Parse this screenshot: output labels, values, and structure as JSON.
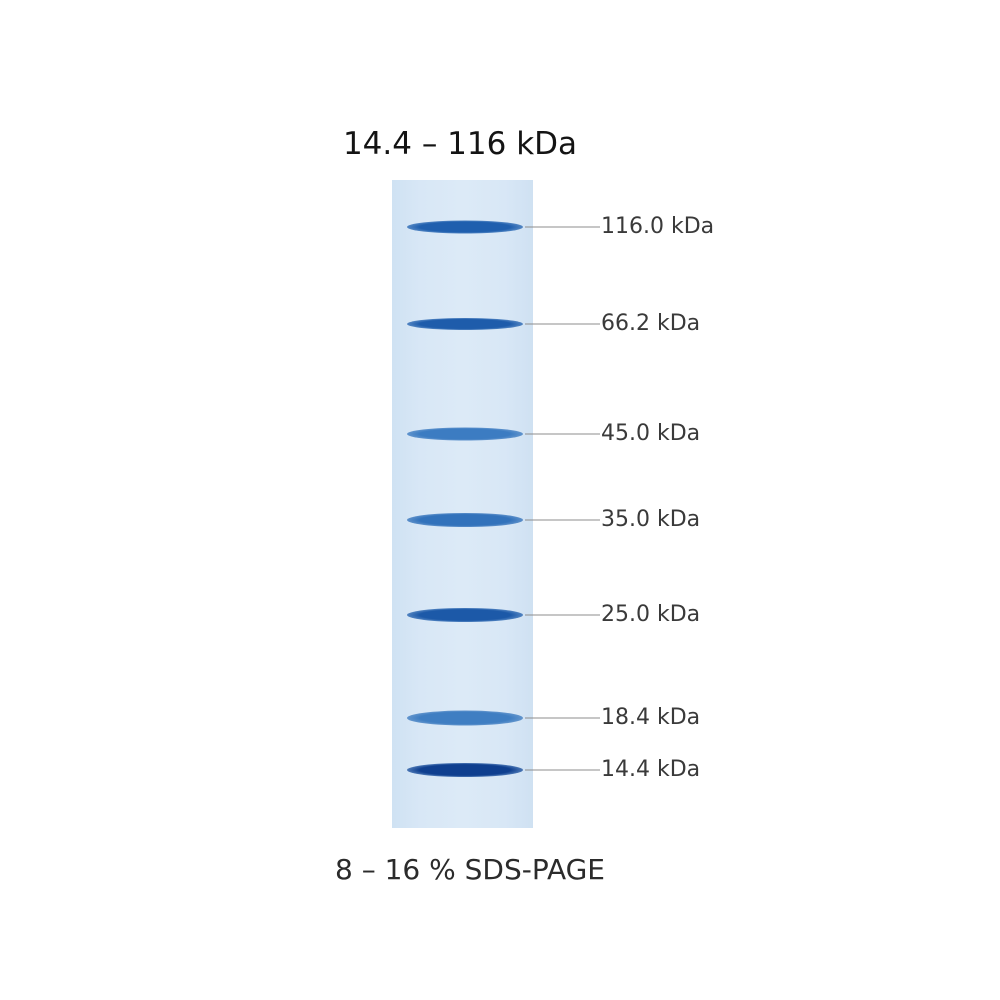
{
  "title": "14.4 – 116 kDa",
  "caption": "8 – 16 % SDS-PAGE",
  "gel": {
    "lane_color": "#d9e8f6",
    "markers": [
      {
        "label": "116.0 kDa",
        "kda": 116.0,
        "band_color": "#1f5fae"
      },
      {
        "label": "66.2 kDa",
        "kda": 66.2,
        "band_color": "#1e5cab"
      },
      {
        "label": "45.0 kDa",
        "kda": 45.0,
        "band_color": "#3c7cc2"
      },
      {
        "label": "35.0 kDa",
        "kda": 35.0,
        "band_color": "#3272bb"
      },
      {
        "label": "25.0 kDa",
        "kda": 25.0,
        "band_color": "#1c59a8"
      },
      {
        "label": "18.4 kDa",
        "kda": 18.4,
        "band_color": "#3f7ec2"
      },
      {
        "label": "14.4 kDa",
        "kda": 14.4,
        "band_color": "#0f3f8f"
      }
    ]
  }
}
